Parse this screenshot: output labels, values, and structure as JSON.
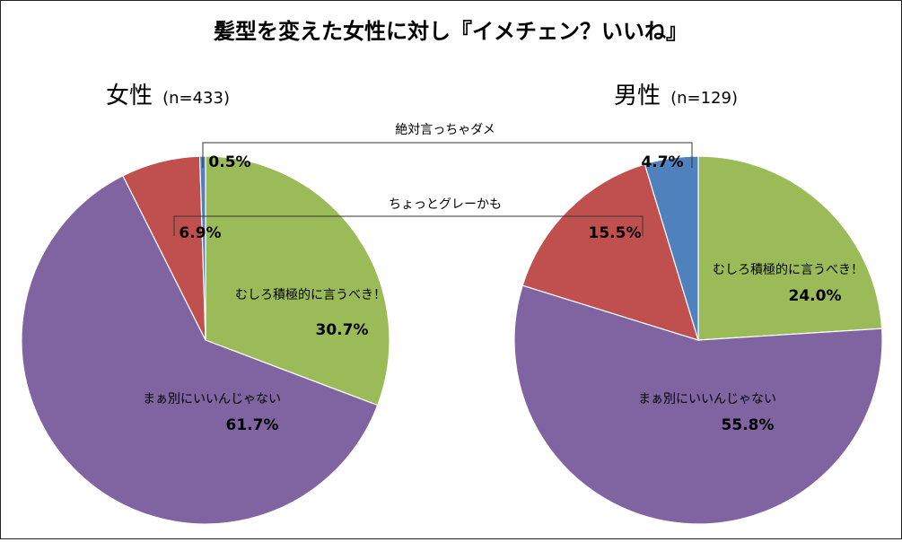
{
  "title": "髪型を変えた女性に対し『イメチェン？いいね』",
  "annotations": {
    "absolutely_not": "絶対言っちゃダメ",
    "maybe_gray": "ちょっとグレーかも"
  },
  "colors": {
    "recommend": "#9BBB59",
    "okay": "#8064A2",
    "gray": "#C0504D",
    "never": "#4F81BD"
  },
  "chart_data": [
    {
      "type": "pie",
      "title": "女性",
      "subtitle": "(n=433)",
      "start_angle_deg": 0,
      "direction": "clockwise",
      "slices": [
        {
          "key": "recommend",
          "label": "むしろ積極的に言うべき！",
          "value": 30.7,
          "display": "30.7%",
          "color": "#9BBB59"
        },
        {
          "key": "okay",
          "label": "まぁ別にいいんじゃない",
          "value": 61.7,
          "display": "61.7%",
          "color": "#8064A2"
        },
        {
          "key": "gray",
          "label": "",
          "value": 6.9,
          "display": "6.9%",
          "color": "#C0504D"
        },
        {
          "key": "never",
          "label": "",
          "value": 0.5,
          "display": "0.5%",
          "color": "#4F81BD"
        }
      ]
    },
    {
      "type": "pie",
      "title": "男性",
      "subtitle": "(n=129)",
      "start_angle_deg": 0,
      "direction": "clockwise",
      "slices": [
        {
          "key": "recommend",
          "label": "むしろ積極的に言うべき！",
          "value": 24.0,
          "display": "24.0%",
          "color": "#9BBB59"
        },
        {
          "key": "okay",
          "label": "まぁ別にいいんじゃない",
          "value": 55.8,
          "display": "55.8%",
          "color": "#8064A2"
        },
        {
          "key": "gray",
          "label": "",
          "value": 15.5,
          "display": "15.5%",
          "color": "#C0504D"
        },
        {
          "key": "never",
          "label": "",
          "value": 4.7,
          "display": "4.7%",
          "color": "#4F81BD"
        }
      ]
    }
  ]
}
